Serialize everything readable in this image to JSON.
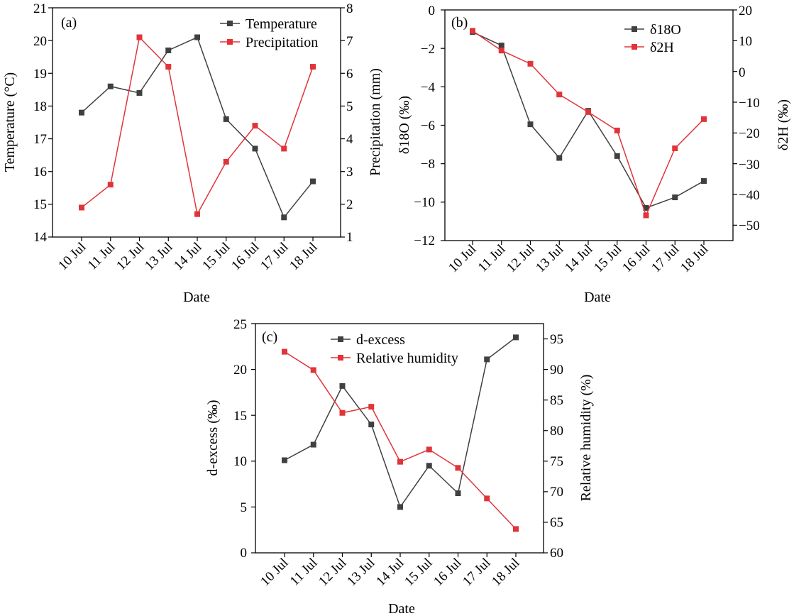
{
  "chart_data": [
    {
      "panel": "(a)",
      "type": "line",
      "categories": [
        "10 Jul",
        "11 Jul",
        "12 Jul",
        "13 Jul",
        "14 Jul",
        "15 Jul",
        "16 Jul",
        "17 Jul",
        "18 Jul"
      ],
      "xlabel": "Date",
      "ylabel_left": "Temperature (°C)",
      "ylabel_right": "Precipitation (mm)",
      "ylim_left": [
        14,
        21
      ],
      "ylim_right": [
        1,
        8
      ],
      "yticks_left": [
        "14",
        "15",
        "16",
        "17",
        "18",
        "19",
        "20",
        "21"
      ],
      "yticks_right": [
        "1",
        "2",
        "3",
        "4",
        "5",
        "6",
        "7",
        "8"
      ],
      "legend_position": "top-right",
      "series": [
        {
          "name": "Temperature",
          "axis": "left",
          "color": "#404040",
          "values": [
            17.8,
            18.6,
            18.4,
            19.7,
            20.1,
            17.6,
            16.7,
            14.6,
            15.7
          ]
        },
        {
          "name": "Precipitation",
          "axis": "right",
          "color": "#e0343a",
          "values": [
            1.9,
            2.6,
            7.1,
            6.2,
            1.7,
            3.3,
            4.4,
            3.7,
            6.2
          ]
        }
      ]
    },
    {
      "panel": "(b)",
      "type": "line",
      "categories": [
        "10 Jul",
        "11 Jul",
        "12 Jul",
        "13 Jul",
        "14 Jul",
        "15 Jul",
        "16 Jul",
        "17 Jul",
        "18 Jul"
      ],
      "xlabel": "Date",
      "ylabel_left": "δ18O (‰)",
      "ylabel_right": "δ2H (‰)",
      "ylim_left": [
        -12,
        0
      ],
      "ylim_right": [
        -55,
        20
      ],
      "yticks_left": [
        "0",
        "−2",
        "−4",
        "−6",
        "−8",
        "−10",
        "−12"
      ],
      "yticks_right": [
        "20",
        "10",
        "0",
        "−10",
        "−20",
        "−30",
        "−40",
        "−50"
      ],
      "legend_position": "top-right",
      "series": [
        {
          "name": "δ18O",
          "axis": "left",
          "color": "#404040",
          "values": [
            -1.15,
            -1.85,
            -5.95,
            -7.7,
            -5.25,
            -7.6,
            -10.3,
            -9.75,
            -8.9
          ]
        },
        {
          "name": "δ2H",
          "axis": "right",
          "color": "#e0343a",
          "values": [
            13.2,
            6.8,
            2.5,
            -7.5,
            -13.2,
            -19.2,
            -46.8,
            -25.0,
            -15.5
          ]
        }
      ]
    },
    {
      "panel": "(c)",
      "type": "line",
      "categories": [
        "10 Jul",
        "11 Jul",
        "12 Jul",
        "13 Jul",
        "14 Jul",
        "15 Jul",
        "16 Jul",
        "17 Jul",
        "18 Jul"
      ],
      "xlabel": "Date",
      "ylabel_left": "d-excess (‰)",
      "ylabel_right": "Relative humidity (%)",
      "ylim_left": [
        0,
        25
      ],
      "ylim_right": [
        60,
        97.5
      ],
      "yticks_left": [
        "0",
        "5",
        "10",
        "15",
        "20",
        "25"
      ],
      "yticks_right": [
        "60",
        "65",
        "70",
        "75",
        "80",
        "85",
        "90",
        "95"
      ],
      "legend_position": "top-left",
      "series": [
        {
          "name": "d-excess",
          "axis": "left",
          "color": "#404040",
          "values": [
            10.1,
            11.8,
            18.2,
            14.0,
            5.0,
            9.5,
            6.5,
            21.1,
            23.5
          ]
        },
        {
          "name": "Relative humidity",
          "axis": "right",
          "color": "#e0343a",
          "values": [
            92.9,
            89.9,
            82.9,
            83.9,
            74.9,
            76.9,
            73.9,
            68.9,
            63.9
          ]
        }
      ]
    }
  ],
  "colors": {
    "series_dark": "#404040",
    "series_red": "#e0343a",
    "axis": "#000000"
  }
}
